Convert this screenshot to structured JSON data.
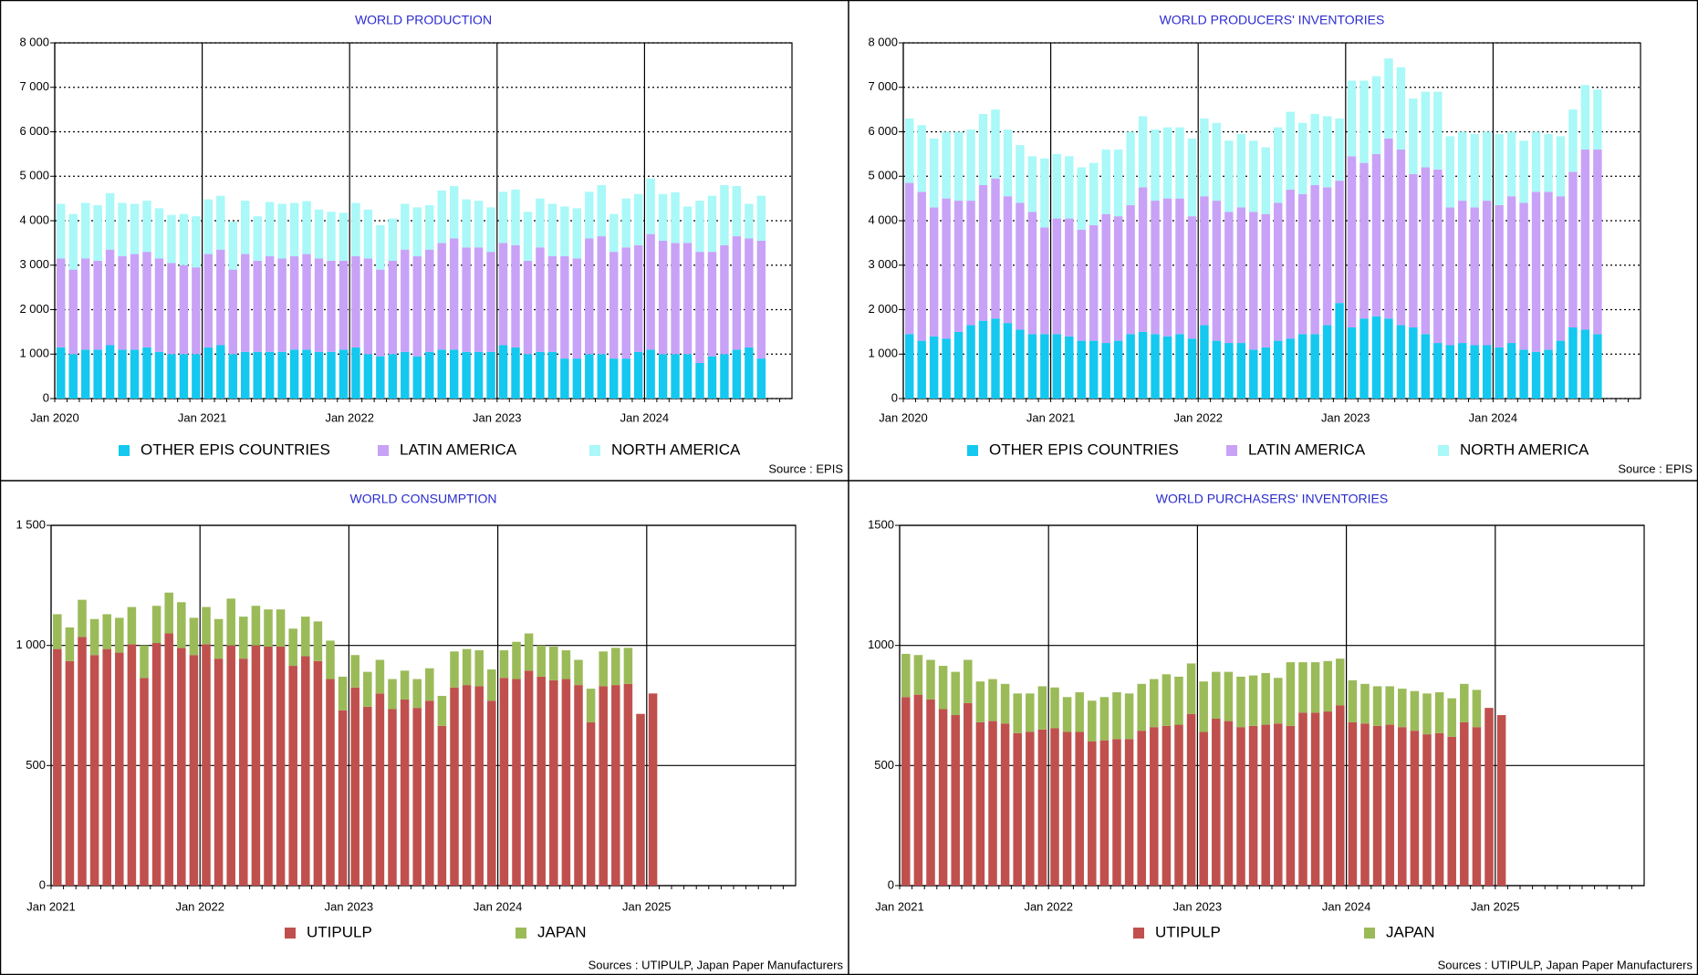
{
  "chart_data": [
    {
      "type": "bar",
      "stacked": true,
      "title": "WORLD PRODUCTION",
      "source": "Source : EPIS",
      "categories": [
        "Jan 2020",
        null,
        null,
        null,
        null,
        null,
        null,
        null,
        null,
        null,
        null,
        null,
        "Jan 2021",
        null,
        null,
        null,
        null,
        null,
        null,
        null,
        null,
        null,
        null,
        null,
        "Jan 2022",
        null,
        null,
        null,
        null,
        null,
        null,
        null,
        null,
        null,
        null,
        null,
        "Jan 2023",
        null,
        null,
        null,
        null,
        null,
        null,
        null,
        null,
        null,
        null,
        null,
        "Jan 2024",
        null,
        null,
        null,
        null,
        null,
        null,
        null,
        null,
        null,
        null,
        null
      ],
      "series": [
        {
          "name": "OTHER EPIS COUNTRIES",
          "color": "#14c8ef",
          "values": [
            1150,
            1000,
            1100,
            1100,
            1200,
            1100,
            1100,
            1150,
            1050,
            1000,
            1000,
            1000,
            1150,
            1200,
            1000,
            1050,
            1050,
            1050,
            1050,
            1100,
            1100,
            1050,
            1050,
            1100,
            1150,
            1000,
            950,
            1000,
            1050,
            950,
            1050,
            1100,
            1100,
            1050,
            1050,
            1050,
            1200,
            1150,
            1000,
            1050,
            1050,
            900,
            900,
            1000,
            1000,
            900,
            900,
            1050,
            1100,
            1000,
            1000,
            1000,
            800,
            950,
            1000,
            1100,
            1150,
            900,
            null,
            null
          ]
        },
        {
          "name": "LATIN AMERICA",
          "color": "#c8a2f6",
          "values": [
            2000,
            1900,
            2050,
            2000,
            2150,
            2100,
            2150,
            2150,
            2100,
            2050,
            2000,
            1950,
            2100,
            2150,
            1900,
            2200,
            2050,
            2150,
            2100,
            2100,
            2150,
            2100,
            2050,
            2000,
            2050,
            2150,
            1950,
            2100,
            2300,
            2250,
            2300,
            2400,
            2500,
            2350,
            2350,
            2250,
            2300,
            2300,
            2100,
            2350,
            2150,
            2300,
            2250,
            2600,
            2650,
            2400,
            2500,
            2400,
            2600,
            2550,
            2500,
            2500,
            2500,
            2350,
            2450,
            2550,
            2450,
            2650,
            null,
            null
          ]
        },
        {
          "name": "NORTH AMERICA",
          "color": "#aaf8f8",
          "values": [
            1230,
            1250,
            1250,
            1250,
            1270,
            1200,
            1130,
            1150,
            1130,
            1080,
            1150,
            1150,
            1230,
            1210,
            1080,
            1200,
            1000,
            1220,
            1230,
            1200,
            1190,
            1100,
            1100,
            1080,
            1200,
            1100,
            1000,
            950,
            1030,
            1100,
            1000,
            1180,
            1180,
            1080,
            1050,
            1000,
            1150,
            1250,
            1100,
            1100,
            1180,
            1120,
            1130,
            1050,
            1150,
            850,
            1100,
            1150,
            1250,
            1050,
            1140,
            820,
            1150,
            1260,
            1350,
            1130,
            780,
            1010,
            null,
            null
          ]
        }
      ],
      "ylim": [
        0,
        8000
      ],
      "yticks": [
        0,
        {
          "value": 1000,
          "label": "1 000"
        },
        {
          "value": 2000,
          "label": "2 000"
        },
        {
          "value": 3000,
          "label": "3 000"
        },
        {
          "value": 4000,
          "label": "4 000"
        },
        {
          "value": 5000,
          "label": "5 000"
        },
        {
          "value": 6000,
          "label": "6 000"
        },
        {
          "value": 7000,
          "label": "7 000"
        },
        {
          "value": 8000,
          "label": "8 000"
        }
      ],
      "grid": true,
      "grid_style": "dotted"
    },
    {
      "type": "bar",
      "stacked": true,
      "title": "WORLD PRODUCERS' INVENTORIES",
      "source": "Source : EPIS",
      "categories": [
        "Jan 2020",
        null,
        null,
        null,
        null,
        null,
        null,
        null,
        null,
        null,
        null,
        null,
        "Jan 2021",
        null,
        null,
        null,
        null,
        null,
        null,
        null,
        null,
        null,
        null,
        null,
        "Jan 2022",
        null,
        null,
        null,
        null,
        null,
        null,
        null,
        null,
        null,
        null,
        null,
        "Jan 2023",
        null,
        null,
        null,
        null,
        null,
        null,
        null,
        null,
        null,
        null,
        null,
        "Jan 2024",
        null,
        null,
        null,
        null,
        null,
        null,
        null,
        null,
        null,
        null,
        null
      ],
      "series": [
        {
          "name": "OTHER EPIS COUNTRIES",
          "color": "#14c8ef",
          "values": [
            1450,
            1300,
            1400,
            1350,
            1500,
            1650,
            1750,
            1800,
            1700,
            1550,
            1450,
            1450,
            1450,
            1400,
            1300,
            1300,
            1250,
            1300,
            1450,
            1500,
            1450,
            1400,
            1450,
            1350,
            1650,
            1300,
            1250,
            1250,
            1100,
            1150,
            1300,
            1350,
            1450,
            1450,
            1650,
            2150,
            1600,
            1800,
            1850,
            1800,
            1650,
            1600,
            1450,
            1250,
            1200,
            1250,
            1200,
            1200,
            1150,
            1250,
            1100,
            1050,
            1100,
            1300,
            1600,
            1550,
            1450,
            null,
            null,
            null
          ]
        },
        {
          "name": "LATIN AMERICA",
          "color": "#c8a2f6",
          "values": [
            3400,
            3350,
            2900,
            3150,
            2950,
            2800,
            3050,
            3150,
            2850,
            2850,
            2750,
            2400,
            2600,
            2650,
            2500,
            2600,
            2900,
            2800,
            2900,
            3250,
            3000,
            3100,
            3050,
            2750,
            2900,
            3150,
            2950,
            3050,
            3100,
            3000,
            3100,
            3350,
            3150,
            3350,
            3100,
            2750,
            3850,
            3500,
            3650,
            4050,
            3950,
            3450,
            3750,
            3900,
            3100,
            3200,
            3100,
            3250,
            3200,
            3300,
            3300,
            3600,
            3550,
            3250,
            3500,
            4050,
            4150,
            null,
            null,
            null
          ]
        },
        {
          "name": "NORTH AMERICA",
          "color": "#aaf8f8",
          "values": [
            1450,
            1500,
            1550,
            1500,
            1550,
            1600,
            1600,
            1550,
            1500,
            1300,
            1250,
            1550,
            1450,
            1400,
            1400,
            1400,
            1450,
            1500,
            1650,
            1600,
            1600,
            1600,
            1600,
            1750,
            1750,
            1750,
            1600,
            1650,
            1600,
            1500,
            1700,
            1750,
            1600,
            1600,
            1600,
            1400,
            1700,
            1850,
            1750,
            1800,
            1850,
            1700,
            1700,
            1750,
            1600,
            1550,
            1650,
            1550,
            1600,
            1450,
            1400,
            1350,
            1300,
            1350,
            1400,
            1450,
            1350,
            null,
            null,
            null
          ]
        }
      ],
      "ylim": [
        0,
        8000
      ],
      "yticks": [
        0,
        {
          "value": 1000,
          "label": "1 000"
        },
        {
          "value": 2000,
          "label": "2 000"
        },
        {
          "value": 3000,
          "label": "3 000"
        },
        {
          "value": 4000,
          "label": "4 000"
        },
        {
          "value": 5000,
          "label": "5 000"
        },
        {
          "value": 6000,
          "label": "6 000"
        },
        {
          "value": 7000,
          "label": "7 000"
        },
        {
          "value": 8000,
          "label": "8 000"
        }
      ],
      "grid": true,
      "grid_style": "dotted"
    },
    {
      "type": "bar",
      "stacked": true,
      "title": "WORLD CONSUMPTION",
      "source": "Sources : UTIPULP, Japan Paper Manufacturers",
      "categories": [
        "Jan 2021",
        null,
        null,
        null,
        null,
        null,
        null,
        null,
        null,
        null,
        null,
        null,
        "Jan 2022",
        null,
        null,
        null,
        null,
        null,
        null,
        null,
        null,
        null,
        null,
        null,
        "Jan 2023",
        null,
        null,
        null,
        null,
        null,
        null,
        null,
        null,
        null,
        null,
        null,
        "Jan 2024",
        null,
        null,
        null,
        null,
        null,
        null,
        null,
        null,
        null,
        null,
        null,
        "Jan 2025",
        null,
        null,
        null,
        null,
        null,
        null,
        null,
        null,
        null,
        null,
        null
      ],
      "series": [
        {
          "name": "UTIPULP",
          "color": "#c0504d",
          "values": [
            985,
            935,
            1035,
            960,
            985,
            970,
            1005,
            865,
            1010,
            1050,
            990,
            960,
            1005,
            945,
            1000,
            945,
            1000,
            995,
            995,
            915,
            955,
            935,
            860,
            730,
            825,
            745,
            800,
            735,
            775,
            740,
            770,
            665,
            825,
            835,
            830,
            770,
            865,
            860,
            895,
            870,
            855,
            860,
            835,
            680,
            830,
            835,
            840,
            715,
            800,
            null,
            null,
            null,
            null,
            null,
            null,
            null,
            null,
            null,
            null,
            null
          ]
        },
        {
          "name": "JAPAN",
          "color": "#9bbb59",
          "values": [
            145,
            140,
            155,
            150,
            145,
            145,
            155,
            135,
            155,
            170,
            190,
            155,
            155,
            165,
            195,
            175,
            165,
            155,
            155,
            155,
            165,
            165,
            160,
            140,
            135,
            145,
            140,
            125,
            120,
            120,
            135,
            125,
            150,
            150,
            150,
            130,
            115,
            155,
            155,
            130,
            140,
            120,
            105,
            140,
            145,
            155,
            150,
            null,
            null,
            null,
            null,
            null,
            null,
            null,
            null,
            null,
            null,
            null,
            null,
            null
          ]
        }
      ],
      "ylim": [
        0,
        1500
      ],
      "yticks": [
        0,
        500,
        {
          "value": 1000,
          "label": "1 000"
        },
        {
          "value": 1500,
          "label": "1 500"
        }
      ],
      "grid": true,
      "grid_style": "solid"
    },
    {
      "type": "bar",
      "stacked": true,
      "title": "WORLD PURCHASERS' INVENTORIES",
      "source": "Sources : UTIPULP, Japan Paper Manufacturers",
      "categories": [
        "Jan 2021",
        null,
        null,
        null,
        null,
        null,
        null,
        null,
        null,
        null,
        null,
        null,
        "Jan 2022",
        null,
        null,
        null,
        null,
        null,
        null,
        null,
        null,
        null,
        null,
        null,
        "Jan 2023",
        null,
        null,
        null,
        null,
        null,
        null,
        null,
        null,
        null,
        null,
        null,
        "Jan 2024",
        null,
        null,
        null,
        null,
        null,
        null,
        null,
        null,
        null,
        null,
        null,
        "Jan 2025",
        null,
        null,
        null,
        null,
        null,
        null,
        null,
        null,
        null,
        null,
        null
      ],
      "series": [
        {
          "name": "UTIPULP",
          "color": "#c0504d",
          "values": [
            785,
            795,
            775,
            735,
            710,
            760,
            680,
            685,
            675,
            635,
            640,
            650,
            655,
            640,
            640,
            600,
            605,
            610,
            610,
            645,
            660,
            665,
            670,
            715,
            640,
            695,
            685,
            660,
            665,
            670,
            675,
            665,
            720,
            720,
            725,
            750,
            680,
            675,
            665,
            670,
            660,
            645,
            630,
            635,
            620,
            680,
            660,
            740,
            710,
            null,
            null,
            null,
            null,
            null,
            null,
            null,
            null,
            null,
            null,
            null
          ]
        },
        {
          "name": "JAPAN",
          "color": "#9bbb59",
          "values": [
            180,
            165,
            165,
            180,
            180,
            180,
            170,
            175,
            165,
            165,
            160,
            180,
            170,
            145,
            165,
            170,
            180,
            195,
            190,
            195,
            200,
            215,
            200,
            210,
            210,
            195,
            205,
            210,
            210,
            215,
            190,
            265,
            210,
            210,
            210,
            195,
            175,
            165,
            165,
            160,
            160,
            165,
            170,
            170,
            160,
            160,
            155,
            null,
            null,
            null,
            null,
            null,
            null,
            null,
            null,
            null,
            null,
            null,
            null,
            null
          ]
        }
      ],
      "ylim": [
        0,
        1500
      ],
      "yticks": [
        0,
        500,
        1000,
        1500
      ],
      "grid": true,
      "grid_style": "solid"
    }
  ]
}
